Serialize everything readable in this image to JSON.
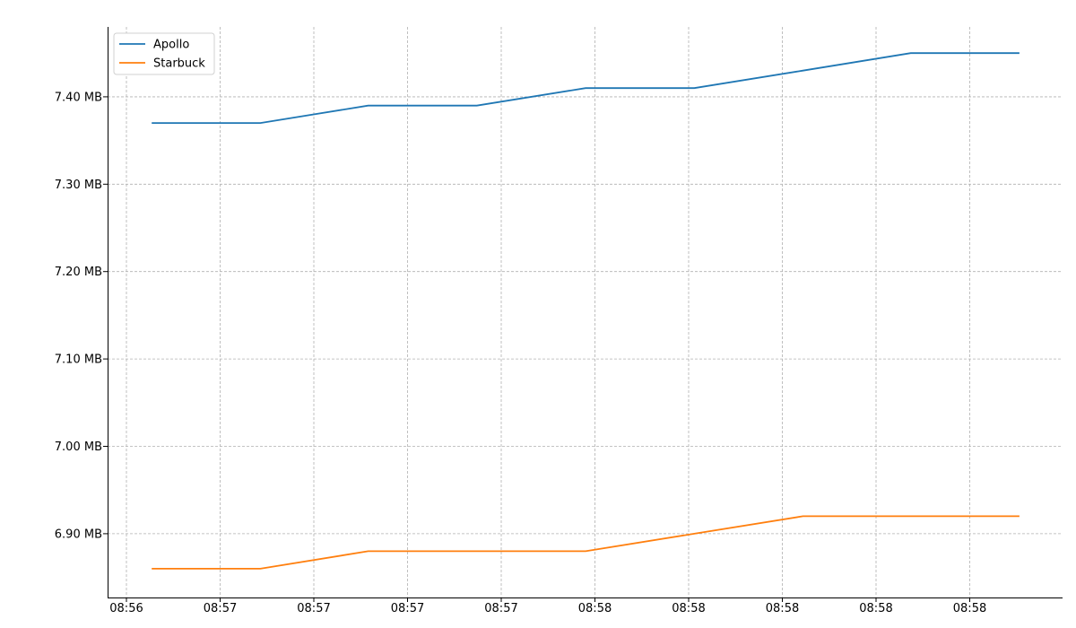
{
  "chart_data": {
    "type": "line",
    "title": "",
    "xlabel": "",
    "ylabel": "",
    "x_tick_labels": [
      "08:56",
      "08:57",
      "08:57",
      "08:57",
      "08:57",
      "08:58",
      "08:58",
      "08:58",
      "08:58",
      "08:58"
    ],
    "y_tick_labels": [
      "6.90 MB",
      "7.00 MB",
      "7.10 MB",
      "7.20 MB",
      "7.30 MB",
      "7.40 MB"
    ],
    "y_ticks": [
      6.9,
      7.0,
      7.1,
      7.2,
      7.3,
      7.4
    ],
    "ylim": [
      6.827,
      7.48
    ],
    "y_unit": "MB",
    "grid": true,
    "legend_position": "top-left",
    "series": [
      {
        "name": "Apollo",
        "color": "#1f77b4",
        "x": [
          0.27,
          1.43,
          2.58,
          3.74,
          4.9,
          6.06,
          7.22,
          8.37,
          9.53
        ],
        "y": [
          7.37,
          7.37,
          7.39,
          7.39,
          7.41,
          7.41,
          7.43,
          7.45,
          7.45
        ]
      },
      {
        "name": "Starbuck",
        "color": "#ff7f0e",
        "x": [
          0.27,
          1.43,
          2.58,
          3.74,
          4.9,
          6.06,
          7.22,
          8.37,
          9.53
        ],
        "y": [
          6.86,
          6.86,
          6.88,
          6.88,
          6.88,
          6.9,
          6.92,
          6.92,
          6.92
        ]
      }
    ]
  }
}
